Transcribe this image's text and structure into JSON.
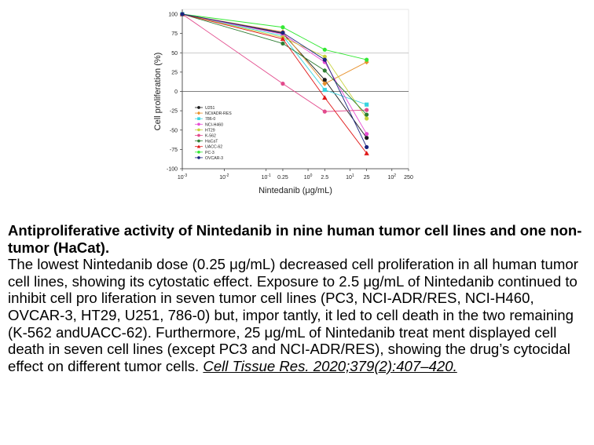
{
  "chart_data": {
    "type": "line",
    "xscale": "log",
    "xlim": [
      0.001,
      250
    ],
    "ylim": [
      -100,
      100
    ],
    "xlabel": "Nintedanib (μg/mL)",
    "ylabel": "Cell proliferation (%)",
    "x_ticks": [
      {
        "value": 0.001,
        "label": "10",
        "sup": "-3"
      },
      {
        "value": 0.01,
        "label": "10",
        "sup": "-2"
      },
      {
        "value": 0.1,
        "label": "10",
        "sup": "-1"
      },
      {
        "value": 0.25,
        "label": "0.25",
        "sup": ""
      },
      {
        "value": 1,
        "label": "10",
        "sup": "0"
      },
      {
        "value": 2.5,
        "label": "2.5",
        "sup": ""
      },
      {
        "value": 10,
        "label": "10",
        "sup": "1"
      },
      {
        "value": 25,
        "label": "25",
        "sup": ""
      },
      {
        "value": 100,
        "label": "10",
        "sup": "2"
      },
      {
        "value": 250,
        "label": "250",
        "sup": ""
      }
    ],
    "y_ticks": [
      100,
      75,
      50,
      25,
      0,
      -25,
      -50,
      -75,
      -100
    ],
    "reference_lines": [
      50,
      0
    ],
    "x": [
      0.001,
      0.25,
      2.5,
      25
    ],
    "series": [
      {
        "name": "U251",
        "color": "#1a1a1a",
        "marker": "circle",
        "values": [
          100,
          75,
          15,
          -60
        ]
      },
      {
        "name": "NCI/ADR-RES",
        "color": "#e8912d",
        "marker": "diamond",
        "values": [
          100,
          77,
          10,
          38
        ]
      },
      {
        "name": "786-0",
        "color": "#39d4e0",
        "marker": "square",
        "values": [
          100,
          72,
          2,
          -17
        ]
      },
      {
        "name": "NCI-H460",
        "color": "#e84bd4",
        "marker": "circle",
        "values": [
          100,
          74,
          38,
          -55
        ]
      },
      {
        "name": "HT29",
        "color": "#c8d23c",
        "marker": "circle",
        "values": [
          100,
          70,
          45,
          -35
        ]
      },
      {
        "name": "K-562",
        "color": "#e24a8c",
        "marker": "circle",
        "values": [
          100,
          10,
          -26,
          -24
        ]
      },
      {
        "name": "HaCaT",
        "color": "#2e7d32",
        "marker": "circle",
        "values": [
          100,
          62,
          27,
          -30
        ]
      },
      {
        "name": "UACC-62",
        "color": "#e01919",
        "marker": "triangle",
        "values": [
          100,
          68,
          -8,
          -80
        ]
      },
      {
        "name": "PC-3",
        "color": "#34e834",
        "marker": "circle",
        "values": [
          100,
          83,
          54,
          41
        ]
      },
      {
        "name": "OVCAR-3",
        "color": "#1a237e",
        "marker": "circle",
        "values": [
          100,
          76,
          41,
          -72
        ]
      }
    ]
  },
  "caption": {
    "title": "Antiproliferative activity of Nintedanib in nine human tumor cell lines and one non-tumor (HaCat).",
    "body": "The lowest Nintedanib dose (0.25 μg/mL) decreased cell proliferation in all human tumor cell lines, showing its cytostatic effect. Exposure to 2.5 μg/mL of Nintedanib continued to inhibit cell pro liferation in seven tumor cell lines (PC3, NCI-ADR/RES, NCI-H460, OVCAR-3, HT29, U251, 786-0) but, impor tantly, it led to cell death in the two remaining (K-562 andUACC-62). Furthermore, 25 μg/mL of Nintedanib treat ment displayed cell death in seven cell lines (except PC3 and NCI-ADR/RES), showing the drug’s cytocidal effect on different tumor cells. ",
    "reference": "Cell Tissue Res. 2020;379(2):407–420."
  }
}
